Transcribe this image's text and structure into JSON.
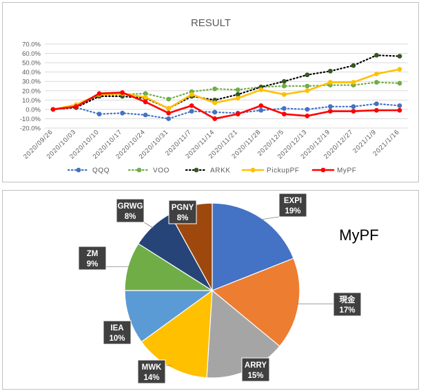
{
  "chart_data": [
    {
      "type": "line",
      "title": "RESULT",
      "xlabel": "",
      "ylabel": "",
      "categories": [
        "2020/09/26",
        "2020/10/03",
        "2020/10/10",
        "2020/10/17",
        "2020/10/24",
        "2020/10/31",
        "2020/11/7",
        "2020/11/14",
        "2020/11/21",
        "2020/11/28",
        "2020/12/5",
        "2020/12/13",
        "2020/12/19",
        "2020/12/27",
        "2021/1/9",
        "2021/1/16"
      ],
      "ylim": [
        -20,
        70
      ],
      "yticks": [
        -20,
        -10,
        0,
        10,
        20,
        30,
        40,
        50,
        60,
        70
      ],
      "ytick_labels": [
        "-20.0%",
        "-10.0%",
        "0.0%",
        "10.0%",
        "20.0%",
        "30.0%",
        "40.0%",
        "50.0%",
        "60.0%",
        "70.0%"
      ],
      "grid": true,
      "legend_position": "bottom",
      "series": [
        {
          "name": "QQQ",
          "color": "#4472C4",
          "style": "dotted-markers",
          "values": [
            0,
            2,
            -5,
            -4,
            -6,
            -10,
            -2,
            -3,
            -4,
            -1,
            1,
            0,
            3,
            3,
            6,
            4
          ]
        },
        {
          "name": "VOO",
          "color": "#70AD47",
          "style": "dotted-markers",
          "values": [
            0,
            3,
            15,
            16,
            17,
            11,
            19,
            22,
            21,
            24,
            25,
            25,
            26,
            26,
            29,
            28
          ]
        },
        {
          "name": "ARKK",
          "color": "#000000",
          "marker_color": "#375623",
          "style": "dotted-markers",
          "values": [
            0,
            2,
            14,
            14,
            12,
            1,
            14,
            10,
            16,
            24,
            30,
            37,
            41,
            47,
            58,
            57
          ]
        },
        {
          "name": "PickupPF",
          "color": "#FFC000",
          "style": "solid-markers",
          "values": [
            0,
            5,
            16,
            17,
            13,
            1,
            16,
            7,
            12,
            21,
            16,
            20,
            29,
            29,
            38,
            43
          ]
        },
        {
          "name": "MyPF",
          "color": "#FF0000",
          "style": "solid-markers",
          "values": [
            0,
            3,
            17,
            18,
            8,
            -4,
            4,
            -10,
            -5,
            4,
            -5,
            -7,
            -2,
            -2,
            -1,
            -1
          ]
        }
      ]
    },
    {
      "type": "pie",
      "title": "MyPF",
      "slices": [
        {
          "label": "EXPI",
          "percent": "19%",
          "value": 19,
          "color": "#4472C4"
        },
        {
          "label": "現金",
          "percent": "17%",
          "value": 17,
          "color": "#ED7D31"
        },
        {
          "label": "ARRY",
          "percent": "15%",
          "value": 15,
          "color": "#A5A5A5"
        },
        {
          "label": "MWK",
          "percent": "14%",
          "value": 14,
          "color": "#FFC000"
        },
        {
          "label": "IEA",
          "percent": "10%",
          "value": 10,
          "color": "#5B9BD5"
        },
        {
          "label": "ZM",
          "percent": "9%",
          "value": 9,
          "color": "#70AD47"
        },
        {
          "label": "GRWG",
          "percent": "8%",
          "value": 8,
          "color": "#264478"
        },
        {
          "label": "PGNY",
          "percent": "8%",
          "value": 8,
          "color": "#9E480E"
        }
      ]
    }
  ]
}
